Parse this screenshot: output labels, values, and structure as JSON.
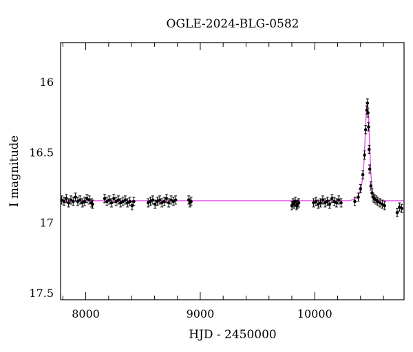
{
  "chart_data": {
    "type": "scatter",
    "title": "OGLE-2024-BLG-0582",
    "xlabel": "HJD - 2450000",
    "ylabel": "I magnitude",
    "xlim": [
      7780,
      10780
    ],
    "ylim": [
      17.55,
      15.72
    ],
    "y_inverted": true,
    "x_ticks": [
      8000,
      9000,
      10000
    ],
    "x_tick_labels": [
      "8000",
      "9000",
      "10000"
    ],
    "y_ticks": [
      16,
      16.5,
      17,
      17.5
    ],
    "y_tick_labels": [
      "16",
      "16.5",
      "17",
      "17.5"
    ],
    "grid": false,
    "colors": {
      "points": "#000000",
      "model": "#e64ce6"
    },
    "series": [
      {
        "kind": "points",
        "x": [
          7790,
          7810,
          7830,
          7850,
          7870,
          7890,
          7910,
          7930,
          7950,
          7970,
          7990,
          8010,
          8030,
          8050,
          8060,
          8165,
          8185,
          8205,
          8225,
          8245,
          8265,
          8285,
          8305,
          8325,
          8345,
          8365,
          8385,
          8405,
          8420,
          8545,
          8565,
          8585,
          8605,
          8625,
          8645,
          8665,
          8685,
          8705,
          8725,
          8745,
          8765,
          8785,
          8900,
          8910,
          8920,
          9800,
          9810,
          9820,
          9830,
          9840,
          9850,
          9860,
          9990,
          10010,
          10030,
          10050,
          10070,
          10090,
          10110,
          10130,
          10150,
          10170,
          10190,
          10210,
          10230,
          10350,
          10380,
          10400,
          10420,
          10435,
          10445,
          10455,
          10460,
          10465,
          10470,
          10475,
          10480,
          10490,
          10500,
          10510,
          10520,
          10535,
          10550,
          10570,
          10590,
          10610,
          10720,
          10740,
          10760
        ],
        "y": [
          16.84,
          16.85,
          16.83,
          16.86,
          16.84,
          16.85,
          16.82,
          16.85,
          16.84,
          16.86,
          16.85,
          16.83,
          16.84,
          16.86,
          16.87,
          16.83,
          16.85,
          16.84,
          16.86,
          16.83,
          16.85,
          16.84,
          16.86,
          16.85,
          16.84,
          16.86,
          16.85,
          16.88,
          16.85,
          16.86,
          16.85,
          16.84,
          16.87,
          16.85,
          16.84,
          16.86,
          16.85,
          16.83,
          16.86,
          16.84,
          16.85,
          16.84,
          16.84,
          16.86,
          16.85,
          16.88,
          16.86,
          16.87,
          16.85,
          16.88,
          16.87,
          16.86,
          16.86,
          16.85,
          16.87,
          16.86,
          16.84,
          16.86,
          16.85,
          16.87,
          16.83,
          16.85,
          16.86,
          16.84,
          16.86,
          16.85,
          16.82,
          16.76,
          16.66,
          16.52,
          16.34,
          16.2,
          16.15,
          16.22,
          16.32,
          16.48,
          16.62,
          16.74,
          16.79,
          16.82,
          16.83,
          16.84,
          16.85,
          16.86,
          16.87,
          16.88,
          16.93,
          16.89,
          16.9
        ]
      },
      {
        "kind": "model",
        "x": [
          7780,
          10300,
          10350,
          10380,
          10400,
          10420,
          10430,
          10440,
          10450,
          10460,
          10470,
          10480,
          10490,
          10500,
          10510,
          10520,
          10540,
          10570,
          10620,
          10780
        ],
        "y": [
          16.845,
          16.845,
          16.835,
          16.81,
          16.77,
          16.68,
          16.57,
          16.4,
          16.22,
          16.15,
          16.25,
          16.45,
          16.65,
          16.76,
          16.8,
          16.82,
          16.835,
          16.84,
          16.845,
          16.845
        ]
      }
    ]
  }
}
